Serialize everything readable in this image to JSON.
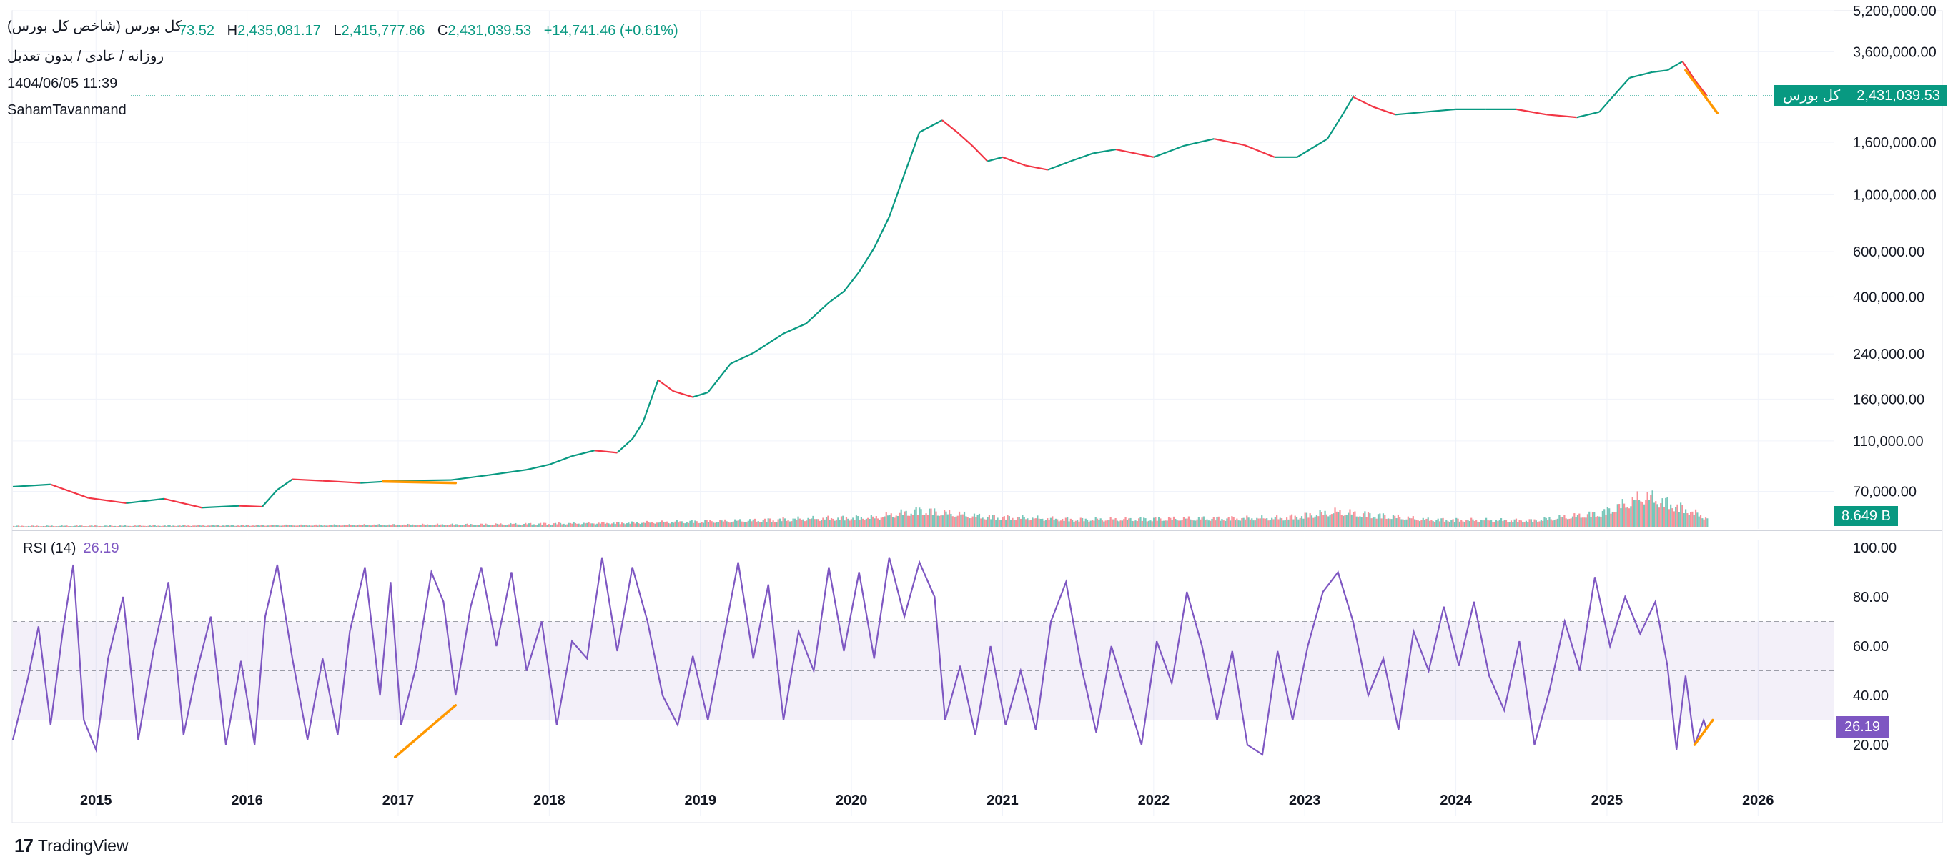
{
  "header": {
    "symbol": "کل بورس (شاخص کل بورس)",
    "interval": "روزانه / عادی / بدون تعدیل",
    "datetime": "1404/06/05 11:39",
    "author": "SahamTavanmand",
    "ohlc": {
      "open_partial": "73.52",
      "h_label": "H",
      "high": "2,435,081.17",
      "l_label": "L",
      "low": "2,415,777.86",
      "c_label": "C",
      "close": "2,431,039.53",
      "change": "+14,741.46 (+0.61%)"
    }
  },
  "badges": {
    "price_name": "کل بورس",
    "price_value": "2,431,039.53",
    "volume_value": "8.649 B",
    "rsi_value": "26.19"
  },
  "rsi_legend": {
    "label": "RSI (14)",
    "value": "26.19"
  },
  "brand": {
    "logo": "17",
    "name": "TradingView"
  },
  "colors": {
    "up": "#089981",
    "down": "#f23645",
    "rsi": "#7e57c2",
    "trendline": "#ff9800",
    "price_line": "#089981"
  },
  "chart_data": [
    {
      "type": "line",
      "name": "price",
      "scale": "log",
      "y_ticks": [
        "5,200,000.00",
        "3,600,000.00",
        "1,600,000.00",
        "1,000,000.00",
        "600,000.00",
        "400,000.00",
        "240,000.00",
        "160,000.00",
        "110,000.00",
        "70,000.00"
      ],
      "y_tick_values": [
        5200000,
        3600000,
        1600000,
        1000000,
        600000,
        400000,
        240000,
        160000,
        110000,
        70000
      ],
      "ylim": [
        50000,
        5200000
      ],
      "x_ticks": [
        "2015",
        "2016",
        "2017",
        "2018",
        "2019",
        "2020",
        "2021",
        "2022",
        "2023",
        "2024",
        "2025",
        "2026"
      ],
      "x_tick_years": [
        2015,
        2016,
        2017,
        2018,
        2019,
        2020,
        2021,
        2022,
        2023,
        2024,
        2025,
        2026
      ],
      "xlim": [
        2014.45,
        2026.5
      ],
      "points": [
        [
          2014.45,
          73000
        ],
        [
          2014.7,
          74500
        ],
        [
          2014.95,
          66000
        ],
        [
          2015.2,
          63000
        ],
        [
          2015.45,
          65500
        ],
        [
          2015.7,
          60500
        ],
        [
          2015.95,
          61500
        ],
        [
          2016.1,
          61000
        ],
        [
          2016.2,
          71000
        ],
        [
          2016.3,
          78000
        ],
        [
          2016.5,
          77000
        ],
        [
          2016.75,
          75500
        ],
        [
          2017.0,
          77000
        ],
        [
          2017.35,
          77500
        ],
        [
          2017.6,
          81000
        ],
        [
          2017.85,
          85000
        ],
        [
          2018.0,
          89000
        ],
        [
          2018.15,
          96000
        ],
        [
          2018.3,
          101000
        ],
        [
          2018.45,
          99000
        ],
        [
          2018.55,
          112000
        ],
        [
          2018.62,
          130000
        ],
        [
          2018.72,
          190000
        ],
        [
          2018.82,
          172000
        ],
        [
          2018.95,
          163000
        ],
        [
          2019.05,
          170000
        ],
        [
          2019.2,
          220000
        ],
        [
          2019.35,
          242000
        ],
        [
          2019.55,
          288000
        ],
        [
          2019.7,
          315000
        ],
        [
          2019.85,
          380000
        ],
        [
          2019.95,
          420000
        ],
        [
          2020.05,
          500000
        ],
        [
          2020.15,
          620000
        ],
        [
          2020.25,
          820000
        ],
        [
          2020.35,
          1200000
        ],
        [
          2020.45,
          1750000
        ],
        [
          2020.6,
          1950000
        ],
        [
          2020.7,
          1750000
        ],
        [
          2020.8,
          1550000
        ],
        [
          2020.9,
          1350000
        ],
        [
          2021.0,
          1400000
        ],
        [
          2021.15,
          1300000
        ],
        [
          2021.3,
          1250000
        ],
        [
          2021.45,
          1350000
        ],
        [
          2021.6,
          1450000
        ],
        [
          2021.75,
          1500000
        ],
        [
          2022.0,
          1400000
        ],
        [
          2022.2,
          1550000
        ],
        [
          2022.4,
          1650000
        ],
        [
          2022.6,
          1560000
        ],
        [
          2022.8,
          1400000
        ],
        [
          2022.95,
          1400000
        ],
        [
          2023.05,
          1520000
        ],
        [
          2023.15,
          1650000
        ],
        [
          2023.25,
          2050000
        ],
        [
          2023.32,
          2400000
        ],
        [
          2023.45,
          2200000
        ],
        [
          2023.6,
          2050000
        ],
        [
          2023.8,
          2100000
        ],
        [
          2024.0,
          2150000
        ],
        [
          2024.2,
          2150000
        ],
        [
          2024.4,
          2150000
        ],
        [
          2024.6,
          2050000
        ],
        [
          2024.8,
          2000000
        ],
        [
          2024.95,
          2100000
        ],
        [
          2025.05,
          2450000
        ],
        [
          2025.15,
          2850000
        ],
        [
          2025.3,
          3000000
        ],
        [
          2025.4,
          3050000
        ],
        [
          2025.5,
          3300000
        ],
        [
          2025.58,
          2800000
        ],
        [
          2025.66,
          2431039.53
        ]
      ],
      "last_price": 2431039.53
    },
    {
      "type": "bar",
      "name": "volume",
      "last_value": "8.649 B",
      "levels": [
        [
          2014.45,
          0.05
        ],
        [
          2015.5,
          0.06
        ],
        [
          2016.5,
          0.08
        ],
        [
          2017.5,
          0.1
        ],
        [
          2018.5,
          0.15
        ],
        [
          2019.3,
          0.22
        ],
        [
          2019.7,
          0.28
        ],
        [
          2020.15,
          0.32
        ],
        [
          2020.45,
          0.55
        ],
        [
          2020.85,
          0.35
        ],
        [
          2021.5,
          0.25
        ],
        [
          2022.2,
          0.28
        ],
        [
          2022.85,
          0.3
        ],
        [
          2023.2,
          0.5
        ],
        [
          2023.8,
          0.25
        ],
        [
          2024.5,
          0.22
        ],
        [
          2024.95,
          0.45
        ],
        [
          2025.25,
          1.0
        ],
        [
          2025.45,
          0.7
        ],
        [
          2025.66,
          0.3
        ]
      ],
      "ylim": [
        0,
        3.5
      ]
    },
    {
      "type": "line",
      "name": "RSI (14)",
      "y_ticks": [
        "100.00",
        "80.00",
        "60.00",
        "40.00",
        "20.00"
      ],
      "y_tick_values": [
        100,
        80,
        60,
        40,
        20
      ],
      "ylim": [
        0,
        100
      ],
      "band": [
        30,
        70
      ],
      "mid": 50,
      "last_value": 26.19,
      "points": [
        [
          2014.45,
          22
        ],
        [
          2014.55,
          47
        ],
        [
          2014.62,
          68
        ],
        [
          2014.7,
          28
        ],
        [
          2014.78,
          66
        ],
        [
          2014.85,
          93
        ],
        [
          2014.92,
          30
        ],
        [
          2015.0,
          18
        ],
        [
          2015.08,
          55
        ],
        [
          2015.18,
          80
        ],
        [
          2015.28,
          22
        ],
        [
          2015.38,
          58
        ],
        [
          2015.48,
          86
        ],
        [
          2015.58,
          24
        ],
        [
          2015.66,
          48
        ],
        [
          2015.76,
          72
        ],
        [
          2015.86,
          20
        ],
        [
          2015.96,
          54
        ],
        [
          2016.05,
          20
        ],
        [
          2016.12,
          72
        ],
        [
          2016.2,
          93
        ],
        [
          2016.3,
          55
        ],
        [
          2016.4,
          22
        ],
        [
          2016.5,
          55
        ],
        [
          2016.6,
          24
        ],
        [
          2016.68,
          66
        ],
        [
          2016.78,
          92
        ],
        [
          2016.88,
          40
        ],
        [
          2016.95,
          86
        ],
        [
          2017.02,
          28
        ],
        [
          2017.12,
          52
        ],
        [
          2017.22,
          90
        ],
        [
          2017.3,
          78
        ],
        [
          2017.38,
          40
        ],
        [
          2017.48,
          76
        ],
        [
          2017.55,
          92
        ],
        [
          2017.65,
          60
        ],
        [
          2017.75,
          90
        ],
        [
          2017.85,
          50
        ],
        [
          2017.95,
          70
        ],
        [
          2018.05,
          28
        ],
        [
          2018.15,
          62
        ],
        [
          2018.25,
          55
        ],
        [
          2018.35,
          96
        ],
        [
          2018.45,
          58
        ],
        [
          2018.55,
          92
        ],
        [
          2018.65,
          70
        ],
        [
          2018.75,
          40
        ],
        [
          2018.85,
          28
        ],
        [
          2018.95,
          56
        ],
        [
          2019.05,
          30
        ],
        [
          2019.15,
          62
        ],
        [
          2019.25,
          94
        ],
        [
          2019.35,
          55
        ],
        [
          2019.45,
          85
        ],
        [
          2019.55,
          30
        ],
        [
          2019.65,
          66
        ],
        [
          2019.75,
          50
        ],
        [
          2019.85,
          92
        ],
        [
          2019.95,
          58
        ],
        [
          2020.05,
          90
        ],
        [
          2020.15,
          55
        ],
        [
          2020.25,
          96
        ],
        [
          2020.35,
          72
        ],
        [
          2020.45,
          94
        ],
        [
          2020.55,
          80
        ],
        [
          2020.62,
          30
        ],
        [
          2020.72,
          52
        ],
        [
          2020.82,
          24
        ],
        [
          2020.92,
          60
        ],
        [
          2021.02,
          28
        ],
        [
          2021.12,
          50
        ],
        [
          2021.22,
          26
        ],
        [
          2021.32,
          70
        ],
        [
          2021.42,
          86
        ],
        [
          2021.52,
          52
        ],
        [
          2021.62,
          25
        ],
        [
          2021.72,
          60
        ],
        [
          2021.82,
          40
        ],
        [
          2021.92,
          20
        ],
        [
          2022.02,
          62
        ],
        [
          2022.12,
          45
        ],
        [
          2022.22,
          82
        ],
        [
          2022.32,
          60
        ],
        [
          2022.42,
          30
        ],
        [
          2022.52,
          58
        ],
        [
          2022.62,
          20
        ],
        [
          2022.72,
          16
        ],
        [
          2022.82,
          58
        ],
        [
          2022.92,
          30
        ],
        [
          2023.02,
          60
        ],
        [
          2023.12,
          82
        ],
        [
          2023.22,
          90
        ],
        [
          2023.32,
          70
        ],
        [
          2023.42,
          40
        ],
        [
          2023.52,
          55
        ],
        [
          2023.62,
          26
        ],
        [
          2023.72,
          66
        ],
        [
          2023.82,
          50
        ],
        [
          2023.92,
          76
        ],
        [
          2024.02,
          52
        ],
        [
          2024.12,
          78
        ],
        [
          2024.22,
          48
        ],
        [
          2024.32,
          34
        ],
        [
          2024.42,
          62
        ],
        [
          2024.52,
          20
        ],
        [
          2024.62,
          42
        ],
        [
          2024.72,
          70
        ],
        [
          2024.82,
          50
        ],
        [
          2024.92,
          88
        ],
        [
          2025.02,
          60
        ],
        [
          2025.12,
          80
        ],
        [
          2025.22,
          65
        ],
        [
          2025.32,
          78
        ],
        [
          2025.4,
          52
        ],
        [
          2025.46,
          18
        ],
        [
          2025.52,
          48
        ],
        [
          2025.58,
          20
        ],
        [
          2025.64,
          30
        ],
        [
          2025.66,
          26.19
        ]
      ]
    }
  ],
  "annotations": {
    "trendlines": [
      {
        "pane": "price",
        "from": [
          2016.9,
          76500
        ],
        "to": [
          2017.38,
          75500
        ]
      },
      {
        "pane": "price",
        "from": [
          2025.52,
          3050000
        ],
        "to": [
          2025.73,
          2080000
        ]
      },
      {
        "pane": "rsi",
        "from": [
          2016.98,
          15
        ],
        "to": [
          2017.38,
          36
        ]
      },
      {
        "pane": "rsi",
        "from": [
          2025.58,
          20
        ],
        "to": [
          2025.7,
          30
        ]
      }
    ]
  }
}
